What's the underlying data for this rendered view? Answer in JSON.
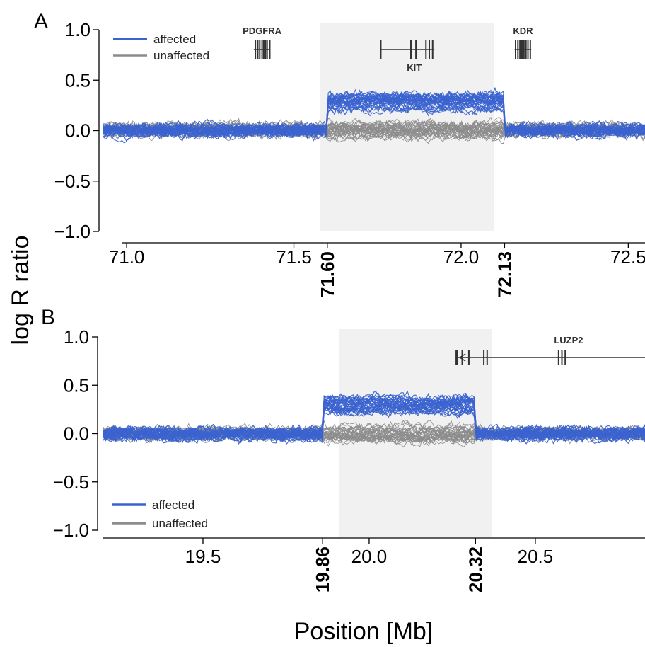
{
  "colors": {
    "affected": "#3a63d0",
    "unaffected": "#8c8c8c",
    "region": "#f1f1f1",
    "gene": "#333333"
  },
  "ylabel": "log R ratio",
  "xlabel": "Position [Mb]",
  "legend": {
    "affected": "affected",
    "unaffected": "unaffected"
  },
  "chart_data": [
    {
      "type": "line",
      "panel": "A",
      "xlim": [
        70.93,
        72.55
      ],
      "ylim": [
        -1.0,
        1.0
      ],
      "x_ticks": [
        71.0,
        71.5,
        72.0,
        72.5
      ],
      "x_tick_labels": [
        "71.0",
        "71.5",
        "72.0",
        "72.5"
      ],
      "y_ticks": [
        -1.0,
        -0.5,
        0.0,
        0.5,
        1.0
      ],
      "y_tick_labels": [
        "−1.0",
        "−0.5",
        "0.0",
        "0.5",
        "1.0"
      ],
      "region": [
        71.6,
        72.13
      ],
      "region_labels": [
        "71.60",
        "72.13"
      ],
      "legend_position": "top-left",
      "genes": [
        {
          "name": "PDGFRA",
          "start": 71.38,
          "end": 71.43,
          "exons": [
            71.385,
            71.392,
            71.398,
            71.405,
            71.41,
            71.415,
            71.42,
            71.428
          ]
        },
        {
          "name": "KIT",
          "start": 71.76,
          "end": 71.92,
          "exons": [
            71.76,
            71.85,
            71.865,
            71.895,
            71.905,
            71.915
          ]
        },
        {
          "name": "KDR",
          "start": 72.16,
          "end": 72.21,
          "exons": [
            72.163,
            72.17,
            72.176,
            72.182,
            72.188,
            72.194,
            72.2,
            72.207
          ]
        }
      ],
      "series_summary": {
        "affected": {
          "n_lines": 30,
          "outside_region_level": 0.0,
          "inside_region_level": 0.28
        },
        "unaffected": {
          "n_lines": 30,
          "outside_region_level": 0.0,
          "inside_region_level": 0.0
        }
      }
    },
    {
      "type": "line",
      "panel": "B",
      "xlim": [
        19.2,
        20.83
      ],
      "ylim": [
        -1.0,
        1.0
      ],
      "x_ticks": [
        19.5,
        20.0,
        20.5
      ],
      "x_tick_labels": [
        "19.5",
        "20.0",
        "20.5"
      ],
      "y_ticks": [
        -1.0,
        -0.5,
        0.0,
        0.5,
        1.0
      ],
      "y_tick_labels": [
        "−1.0",
        "−0.5",
        "0.0",
        "0.5",
        "1.0"
      ],
      "region": [
        19.86,
        20.32
      ],
      "region_labels": [
        "19.86",
        "20.32"
      ],
      "legend_position": "bottom-left",
      "genes": [
        {
          "name": "LUZP2",
          "start": 20.26,
          "end": 20.83,
          "strand": "-",
          "exons": [
            20.262,
            20.265,
            20.28,
            20.3,
            20.345,
            20.355,
            20.57,
            20.58,
            20.59
          ]
        }
      ],
      "series_summary": {
        "affected": {
          "n_lines": 30,
          "outside_region_level": 0.0,
          "inside_region_level": 0.3
        },
        "unaffected": {
          "n_lines": 30,
          "outside_region_level": 0.0,
          "inside_region_level": 0.0
        }
      }
    }
  ]
}
